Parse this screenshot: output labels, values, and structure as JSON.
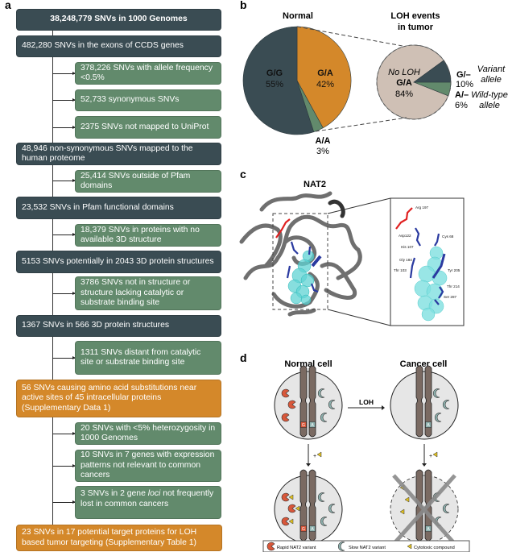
{
  "panels": {
    "a": "a",
    "b": "b",
    "c": "c",
    "d": "d"
  },
  "flowchart": {
    "boxes": [
      {
        "text": "38,248,779 SNVs in 1000 Genomes",
        "type": "dark"
      },
      {
        "text": "482,280 SNVs in the exons of CCDS genes",
        "type": "dark"
      },
      {
        "text": "378,226 SNVs with allele frequency <0.5%",
        "type": "green"
      },
      {
        "text": "52,733 synonymous SNVs",
        "type": "green"
      },
      {
        "text": "2375 SNVs not mapped to UniProt",
        "type": "green"
      },
      {
        "text": "48,946 non-synonymous SNVs mapped to the human proteome",
        "type": "dark"
      },
      {
        "text": "25,414 SNVs outside of Pfam domains",
        "type": "green"
      },
      {
        "text": "23,532 SNVs in Pfam functional domains",
        "type": "dark"
      },
      {
        "text": "18,379 SNVs in proteins with no available 3D structure",
        "type": "green"
      },
      {
        "text": "5153 SNVs potentially in 2043 3D protein structures",
        "type": "dark"
      },
      {
        "text": "3786 SNVs not in structure or structure lacking catalytic or substrate binding site",
        "type": "green"
      },
      {
        "text": "1367 SNVs in 566 3D protein structures",
        "type": "dark"
      },
      {
        "text": "1311 SNVs distant from catalytic site or substrate binding site",
        "type": "green"
      },
      {
        "text": "56 SNVs causing amino acid substitutions near active sites of 45 intracellular proteins (Supplementary Data 1)",
        "type": "orange"
      },
      {
        "text": "20 SNVs with <5% heterozygosity in 1000 Genomes",
        "type": "green"
      },
      {
        "text": "10 SNVs in 7 genes with expression patterns not relevant to common cancers",
        "type": "green"
      },
      {
        "text_before": "3 SNVs in 2 gene ",
        "text_italic": "loci",
        "text_after": " not frequently lost in common cancers",
        "type": "green"
      },
      {
        "text": "23 SNVs in 17 potential target proteins for LOH based tumor targeting (Supplementary Table 1)",
        "type": "orange"
      }
    ]
  },
  "pie": {
    "normal": {
      "title": "Normal",
      "slices": [
        {
          "label": "G/A",
          "percent": 42,
          "pct_text": "42%",
          "color": "#d4882a"
        },
        {
          "label": "A/A",
          "percent": 3,
          "pct_text": "3%",
          "color": "#628a6c"
        },
        {
          "label": "G/G",
          "percent": 55,
          "pct_text": "55%",
          "color": "#3a4c53"
        }
      ]
    },
    "loh": {
      "title_line1": "LOH events",
      "title_line2": "in tumor",
      "slices": [
        {
          "label": "G/A",
          "sublabel": "No LOH",
          "percent": 84,
          "pct_text": "84%",
          "color": "#cfc0b5"
        },
        {
          "label": "G/–",
          "percent": 10,
          "pct_text": "10%",
          "note_line1": "Variant",
          "note_line2": "allele",
          "color": "#3a4c53"
        },
        {
          "label": "A/–",
          "percent": 6,
          "pct_text": "6%",
          "note_line1": "Wild-type",
          "note_line2": "allele",
          "color": "#628a6c"
        }
      ]
    }
  },
  "protein": {
    "title": "NAT2",
    "residues": [
      "Arg 197",
      "Asp122",
      "Cys 68",
      "His 107",
      "Gly 184",
      "Thr 103",
      "Tyr 205",
      "Thr 214",
      "Ser 287"
    ]
  },
  "cells": {
    "normal_title": "Normal cell",
    "cancer_title": "Cancer cell",
    "loh_label": "LOH",
    "plus": "+",
    "allele_g": "G",
    "allele_a": "A",
    "legend": {
      "rapid": "Rapid NAT2 variant",
      "slow": "Slow NAT2 variant",
      "compound": "Cytotoxic compound"
    },
    "colors": {
      "rapid": "#d9573a",
      "slow": "#8fb3b0",
      "compound": "#e0c020",
      "cell": "#e6e6e6",
      "chromosome": "#7a6a62"
    }
  }
}
